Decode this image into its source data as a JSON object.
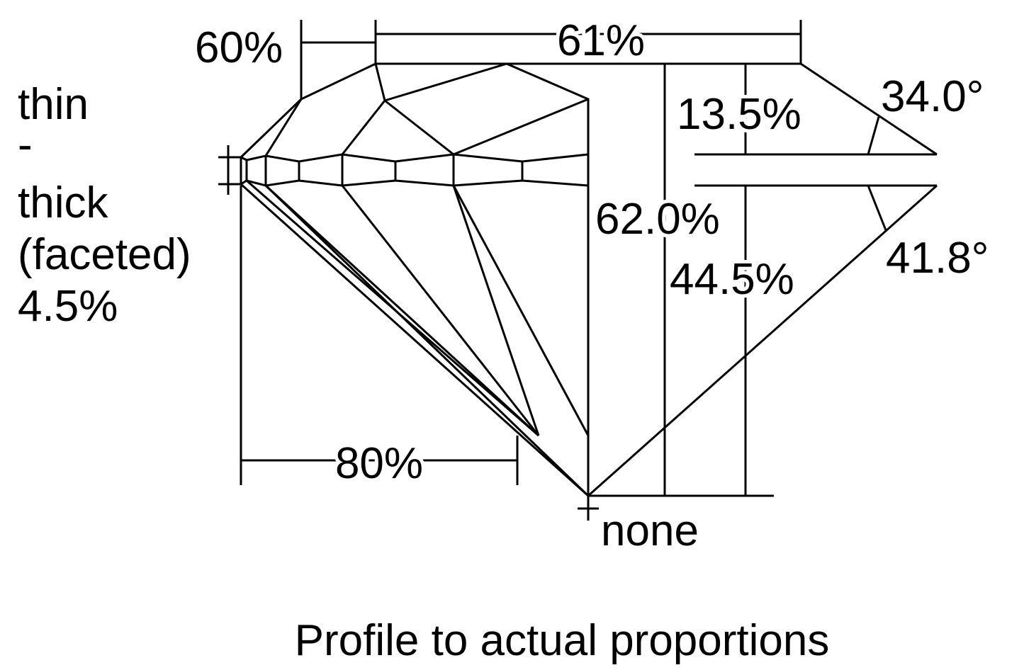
{
  "labels": {
    "star_length": "60%",
    "table": "61%",
    "crown_height": "13.5%",
    "crown_angle": "34.0°",
    "girdle": [
      "thin",
      "-",
      "thick",
      "(faceted)",
      "4.5%"
    ],
    "total_depth": "62.0%",
    "pavilion_depth": "44.5%",
    "pavilion_angle": "41.8°",
    "lower_half": "80%",
    "culet": "none"
  },
  "caption": "Profile to actual proportions"
}
